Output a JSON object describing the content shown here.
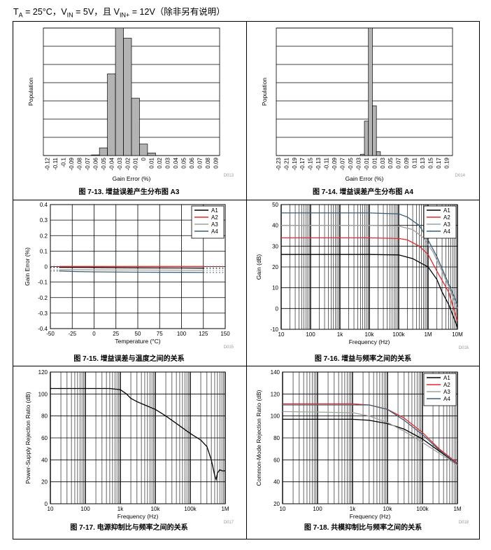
{
  "header": {
    "t_sym": "T",
    "t_sub": "A",
    "t_val": " = 25°C，V",
    "vin_sub": "IN",
    "vin_val": " = 5V，且 V",
    "vinp_sub": "IN+",
    "vinp_val": " = 12V（除非另有说明）"
  },
  "chart_data": [
    {
      "id": "fig13",
      "type": "bar",
      "caption": "图 7-13. 增益误差产生分布图 A3",
      "code": "D013",
      "xlabel": "Gain Error (%)",
      "ylabel": "Population",
      "categories": [
        "-0.12",
        "-0.11",
        "-0.1",
        "-0.09",
        "-0.08",
        "-0.07",
        "-0.06",
        "-0.05",
        "-0.04",
        "-0.03",
        "-0.02",
        "-0.01",
        "0",
        "0.01",
        "0.02",
        "0.03",
        "0.04",
        "0.05",
        "0.06",
        "0.07",
        "0.08",
        "0.09"
      ],
      "values": [
        0,
        0,
        0,
        0,
        0,
        0,
        0.5,
        6,
        64,
        100,
        92,
        45,
        9,
        2,
        0,
        0,
        0,
        0,
        0,
        0,
        0,
        0
      ],
      "ylim": [
        0,
        100
      ],
      "gridlines": 7
    },
    {
      "id": "fig14",
      "type": "bar",
      "caption": "图 7-14. 增益误差产生分布图 A4",
      "code": "D014",
      "xlabel": "Gain Error (%)",
      "ylabel": "Population",
      "categories": [
        "-0.23",
        "-0.22",
        "-0.21",
        "-0.2",
        "-0.19",
        "-0.18",
        "-0.17",
        "-0.16",
        "-0.15",
        "-0.14",
        "-0.13",
        "-0.12",
        "-0.11",
        "-0.1",
        "-0.09",
        "-0.08",
        "-0.07",
        "-0.06",
        "-0.05",
        "-0.04",
        "-0.03",
        "-0.02",
        "-0.01",
        "0",
        "0.01",
        "0.02",
        "0.03",
        "0.04",
        "0.05",
        "0.06",
        "0.07",
        "0.08",
        "0.09",
        "0.1",
        "0.11",
        "0.12",
        "0.13",
        "0.14",
        "0.15",
        "0.16",
        "0.17",
        "0.18",
        "0.19",
        "0.2"
      ],
      "values": [
        0,
        0,
        0,
        0,
        0,
        0,
        0,
        0,
        0,
        0,
        0,
        0,
        0,
        0,
        0,
        0,
        0,
        0,
        0,
        0,
        0,
        1,
        27,
        100,
        39,
        3,
        0,
        0,
        0,
        0,
        0,
        0,
        0,
        0,
        0,
        0,
        0,
        0,
        0,
        0,
        0,
        0,
        0,
        0
      ],
      "tick_labels": [
        "-0.23",
        "-0.21",
        "-0.19",
        "-0.17",
        "-0.15",
        "-0.13",
        "-0.11",
        "-0.09",
        "-0.07",
        "-0.05",
        "-0.03",
        "-0.01",
        "0.01",
        "0.03",
        "0.05",
        "0.07",
        "0.09",
        "0.11",
        "0.13",
        "0.15",
        "0.17",
        "0.19"
      ],
      "ylim": [
        0,
        100
      ],
      "gridlines": 7
    },
    {
      "id": "fig15",
      "type": "line",
      "caption": "图 7-15. 增益误差与温度之间的关系",
      "code": "D015",
      "xlabel": "Temperature (°C)",
      "ylabel": "Gain Error (%)",
      "xlim": [
        -50,
        150
      ],
      "ylim": [
        -0.4,
        0.4
      ],
      "xticks": [
        "-50",
        "-25",
        "0",
        "25",
        "50",
        "75",
        "100",
        "125",
        "150"
      ],
      "yticks": [
        "-0.4",
        "-0.3",
        "-0.2",
        "-0.1",
        "0",
        "0.1",
        "0.2",
        "0.3",
        "0.4"
      ],
      "legend": [
        "A1",
        "A2",
        "A3",
        "A4"
      ],
      "series": [
        {
          "name": "A1",
          "color": "#000000",
          "x": [
            -40,
            0,
            50,
            100,
            125
          ],
          "y": [
            -0.005,
            -0.006,
            -0.008,
            -0.009,
            -0.01
          ]
        },
        {
          "name": "A2",
          "color": "#e8262a",
          "x": [
            -40,
            0,
            50,
            100,
            125
          ],
          "y": [
            0.001,
            0.001,
            0.001,
            0.001,
            0.001
          ]
        },
        {
          "name": "A3",
          "color": "#a0a0a0",
          "x": [
            -40,
            0,
            50,
            100,
            125
          ],
          "y": [
            -0.02,
            -0.021,
            -0.022,
            -0.023,
            -0.024
          ]
        },
        {
          "name": "A4",
          "color": "#3a5f78",
          "x": [
            -40,
            -20,
            0,
            50,
            100,
            125
          ],
          "y": [
            -0.028,
            -0.032,
            -0.034,
            -0.036,
            -0.037,
            -0.038
          ]
        }
      ]
    },
    {
      "id": "fig16",
      "type": "line",
      "caption": "图 7-16. 增益与频率之间的关系",
      "code": "D016",
      "xlabel": "Frequency (Hz)",
      "ylabel": "Gain (dB)",
      "xscale": "log",
      "xlim": [
        10,
        10000000
      ],
      "ylim": [
        -10,
        50
      ],
      "xticks": [
        "10",
        "100",
        "1k",
        "10k",
        "100k",
        "1M",
        "10M"
      ],
      "yticks": [
        "-10",
        "0",
        "10",
        "20",
        "30",
        "40",
        "50"
      ],
      "legend": [
        "A1",
        "A2",
        "A3",
        "A4"
      ],
      "series": [
        {
          "name": "A1",
          "color": "#000000",
          "x": [
            10,
            10000,
            100000,
            300000,
            1000000,
            2000000,
            3000000,
            5000000,
            10000000
          ],
          "y": [
            26,
            26,
            25.8,
            24,
            20,
            14,
            8,
            2,
            -9
          ]
        },
        {
          "name": "A2",
          "color": "#e8262a",
          "x": [
            10,
            10000,
            100000,
            200000,
            500000,
            1000000,
            2000000,
            5000000,
            10000000
          ],
          "y": [
            34,
            34,
            33.7,
            33,
            30,
            26,
            18,
            8,
            -6
          ]
        },
        {
          "name": "A3",
          "color": "#a0a0a0",
          "x": [
            10,
            10000,
            100000,
            300000,
            700000,
            1500000,
            3000000,
            6000000,
            10000000
          ],
          "y": [
            40,
            40,
            39.7,
            38,
            34,
            27,
            18,
            8,
            0
          ]
        },
        {
          "name": "A4",
          "color": "#3a5f78",
          "x": [
            10,
            10000,
            100000,
            200000,
            500000,
            1000000,
            2000000,
            5000000,
            10000000
          ],
          "y": [
            46,
            46,
            45.5,
            44,
            40,
            33,
            25,
            12,
            2
          ]
        }
      ]
    },
    {
      "id": "fig17",
      "type": "line",
      "caption": "图 7-17. 电源抑制比与频率之间的关系",
      "code": "D017",
      "xlabel": "Frequency (Hz)",
      "ylabel": "Power-Supply Rejection Ratio (dB)",
      "xscale": "log",
      "xlim": [
        10,
        1000000
      ],
      "ylim": [
        0,
        120
      ],
      "xticks": [
        "10",
        "100",
        "1k",
        "10k",
        "100k",
        "1M"
      ],
      "yticks": [
        "0",
        "20",
        "40",
        "60",
        "80",
        "100",
        "120"
      ],
      "series": [
        {
          "name": "PSRR",
          "color": "#000000",
          "x": [
            10,
            500,
            1000,
            1500,
            2000,
            3000,
            5000,
            10000,
            20000,
            50000,
            100000,
            200000,
            300000,
            400000,
            500000,
            550000,
            600000,
            700000,
            800000,
            1000000
          ],
          "y": [
            105,
            105,
            104,
            100,
            96,
            93,
            90,
            86,
            80,
            71,
            64,
            58,
            52,
            40,
            26,
            22,
            28,
            31,
            30,
            30
          ]
        }
      ]
    },
    {
      "id": "fig18",
      "type": "line",
      "caption": "图 7-18. 共模抑制比与频率之间的关系",
      "code": "D018",
      "xlabel": "Frequency (Hz)",
      "ylabel": "Common-Mode Rejection Ratio (dB)",
      "xscale": "log",
      "xlim": [
        10,
        1000000
      ],
      "ylim": [
        20,
        140
      ],
      "xticks": [
        "10",
        "100",
        "1k",
        "10k",
        "100k",
        "1M"
      ],
      "yticks": [
        "20",
        "40",
        "60",
        "80",
        "100",
        "120",
        "140"
      ],
      "legend": [
        "A1",
        "A2",
        "A3",
        "A4"
      ],
      "series": [
        {
          "name": "A1",
          "color": "#000000",
          "x": [
            10,
            1000,
            3000,
            10000,
            30000,
            100000,
            300000,
            1000000
          ],
          "y": [
            97,
            97,
            96,
            93,
            88,
            79,
            68,
            56
          ]
        },
        {
          "name": "A2",
          "color": "#e8262a",
          "x": [
            10,
            1000,
            3000,
            10000,
            30000,
            100000,
            300000,
            1000000
          ],
          "y": [
            111,
            111,
            110,
            106,
            98,
            85,
            70,
            57
          ]
        },
        {
          "name": "A3",
          "color": "#a0a0a0",
          "x": [
            10,
            1000,
            3000,
            10000,
            30000,
            100000,
            300000,
            1000000
          ],
          "y": [
            104,
            103,
            100,
            94,
            86,
            76,
            66,
            55
          ]
        },
        {
          "name": "A4",
          "color": "#3a5f78",
          "x": [
            10,
            1000,
            3000,
            10000,
            30000,
            100000,
            300000,
            1000000
          ],
          "y": [
            110,
            110,
            110,
            106,
            96,
            83,
            69,
            56
          ]
        }
      ]
    }
  ]
}
